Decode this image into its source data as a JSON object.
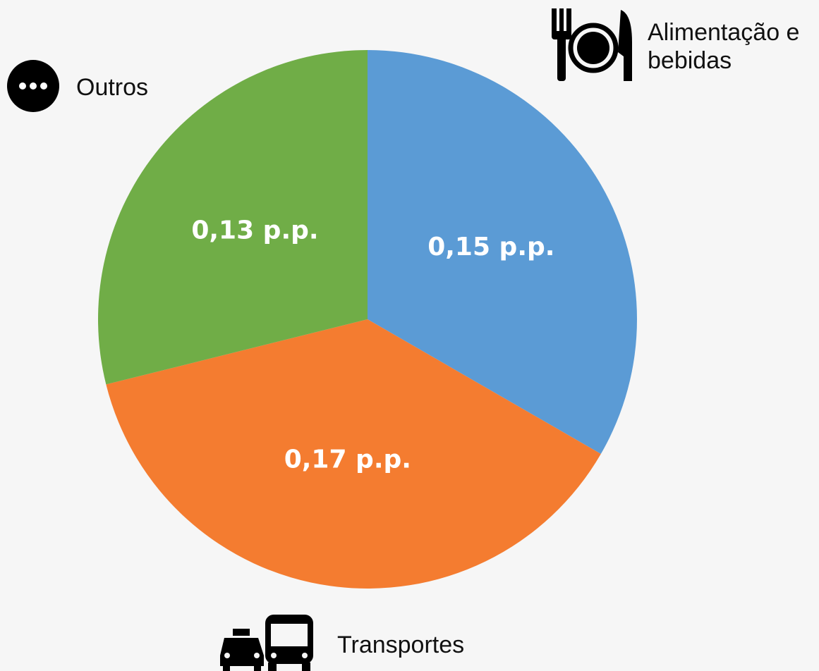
{
  "chart_data": {
    "type": "pie",
    "categories": [
      "Alimentação e bebidas",
      "Transportes",
      "Outros"
    ],
    "values": [
      0.15,
      0.17,
      0.13
    ],
    "value_labels": [
      "0,15 p.p.",
      "0,17 p.p.",
      "0,13 p.p."
    ],
    "colors": [
      "#5b9bd5",
      "#f47c30",
      "#70ad47"
    ]
  }
}
